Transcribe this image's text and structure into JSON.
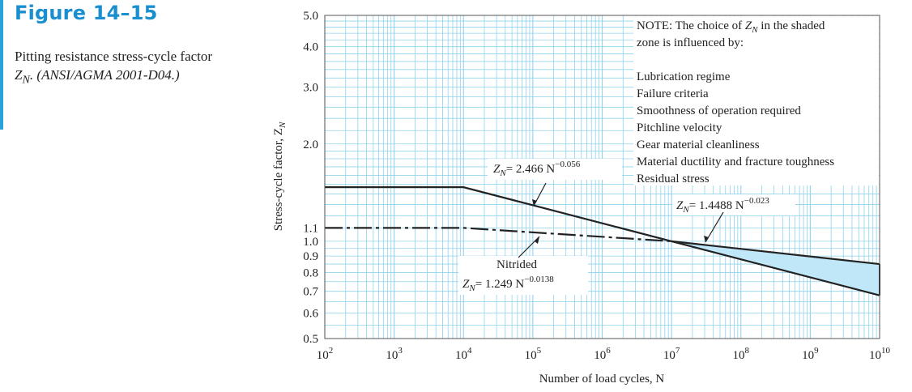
{
  "figure": {
    "label": "Figure 14–15",
    "caption_text": "Pitting resistance stress-cycle factor ",
    "caption_symbol": "Z",
    "caption_subscript": "N",
    "caption_source": ". (ANSI/AGMA 2001-D04.)"
  },
  "chart_data": {
    "type": "line",
    "x_scale": "log",
    "y_scale": "log",
    "xlim": [
      100,
      10000000000
    ],
    "ylim": [
      0.5,
      5.0
    ],
    "grid": true,
    "x_ticks": [
      {
        "value": 100,
        "base": "10",
        "exp": "2"
      },
      {
        "value": 1000,
        "base": "10",
        "exp": "3"
      },
      {
        "value": 10000,
        "base": "10",
        "exp": "4"
      },
      {
        "value": 100000,
        "base": "10",
        "exp": "5"
      },
      {
        "value": 1000000,
        "base": "10",
        "exp": "6"
      },
      {
        "value": 10000000,
        "base": "10",
        "exp": "7"
      },
      {
        "value": 100000000,
        "base": "10",
        "exp": "8"
      },
      {
        "value": 1000000000,
        "base": "10",
        "exp": "9"
      },
      {
        "value": 10000000000,
        "base": "10",
        "exp": "10"
      }
    ],
    "y_ticks": [
      {
        "value": 5.0,
        "label": "5.0"
      },
      {
        "value": 4.0,
        "label": "4.0"
      },
      {
        "value": 3.0,
        "label": "3.0"
      },
      {
        "value": 2.0,
        "label": "2.0"
      },
      {
        "value": 1.1,
        "label": "1.1"
      },
      {
        "value": 1.0,
        "label": "1.0"
      },
      {
        "value": 0.9,
        "label": "0.9"
      },
      {
        "value": 0.8,
        "label": "0.8"
      },
      {
        "value": 0.7,
        "label": "0.7"
      },
      {
        "value": 0.6,
        "label": "0.6"
      },
      {
        "value": 0.5,
        "label": "0.5"
      }
    ],
    "xlabel": "Number of load cycles, N",
    "ylabel": "Stress-cycle factor, Z",
    "ylabel_sub": "N",
    "series": [
      {
        "style": "solid",
        "x": [
          100,
          10000,
          10000000,
          10000000000
        ],
        "y": [
          1.47,
          1.47,
          1.0,
          0.68
        ]
      },
      {
        "style": "solid",
        "x": [
          10000000,
          10000000000
        ],
        "y": [
          1.0,
          0.85
        ]
      },
      {
        "style": "dashdot",
        "x": [
          100,
          10000,
          10000000
        ],
        "y": [
          1.1,
          1.1,
          1.0
        ]
      }
    ],
    "shaded_zone": {
      "color": "#bfe7f8",
      "upper": {
        "x": [
          10000000,
          10000000000
        ],
        "y": [
          1.0,
          0.85
        ]
      },
      "lower": {
        "x": [
          10000000,
          10000000000
        ],
        "y": [
          1.0,
          0.68
        ]
      }
    },
    "grid_color": "#8fd2ee",
    "line_color": "#222222",
    "annotations": {
      "eq1": {
        "pre": "Z",
        "sub": "N",
        "mid": "= 2.466 N",
        "sup": "−0.056"
      },
      "eq2": {
        "pre": "Z",
        "sub": "N",
        "mid": "= 1.4488 N",
        "sup": "−0.023"
      },
      "nitrided": "Nitrided",
      "eq3": {
        "pre": "Z",
        "sub": "N",
        "mid": "= 1.249 N",
        "sup": "−0.0138"
      },
      "note_line1_a": "NOTE:  The choice of ",
      "note_line1_sym": "Z",
      "note_line1_sub": "N",
      "note_line1_b": " in the shaded",
      "note_line2": "zone is influenced by:",
      "note_items": [
        "Lubrication regime",
        "Failure criteria",
        "Smoothness of operation required",
        "Pitchline velocity",
        "Gear material cleanliness",
        "Material ductility and fracture toughness",
        "Residual stress"
      ]
    }
  }
}
